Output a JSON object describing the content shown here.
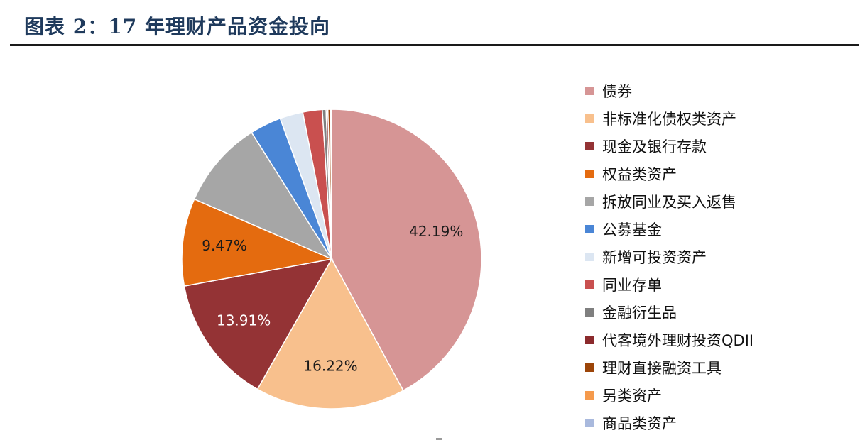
{
  "header": {
    "title": "图表 2：17 年理财产品资金投向"
  },
  "chart_data": {
    "type": "pie",
    "title": "",
    "start_angle_deg": 0,
    "direction": "clockwise",
    "slices": [
      {
        "label": "债券",
        "value": 42.19,
        "color": "#d69595",
        "data_label": "42.19%",
        "label_color": "#1a1a1a"
      },
      {
        "label": "非标准化债权类资产",
        "value": 16.22,
        "color": "#f8c08d",
        "data_label": "16.22%",
        "label_color": "#1a1a1a"
      },
      {
        "label": "现金及银行存款",
        "value": 13.91,
        "color": "#943335",
        "data_label": "13.91%",
        "label_color": "#ffffff"
      },
      {
        "label": "权益类资产",
        "value": 9.47,
        "color": "#e46b0f",
        "data_label": "9.47%",
        "label_color": "#1a1a1a"
      },
      {
        "label": "拆放同业及买入返售",
        "value": 9.5,
        "color": "#a6a6a6",
        "data_label": null
      },
      {
        "label": "公募基金",
        "value": 3.4,
        "color": "#4a86d6",
        "data_label": null
      },
      {
        "label": "新增可投资资产",
        "value": 2.5,
        "color": "#dce6f2",
        "data_label": null
      },
      {
        "label": "同业存单",
        "value": 2.1,
        "color": "#c9504f",
        "data_label": null
      },
      {
        "label": "金融衍生品",
        "value": 0.4,
        "color": "#7f7f7f",
        "data_label": null
      },
      {
        "label": "代客境外理财投资QDII",
        "value": 0.2,
        "color": "#8b2a2c",
        "data_label": null
      },
      {
        "label": "理财直接融资工具",
        "value": 0.3,
        "color": "#9c4509",
        "data_label": null
      },
      {
        "label": "另类资产",
        "value": 0.05,
        "color": "#f59a4c",
        "data_label": null
      },
      {
        "label": "商品类资产",
        "value": 0.05,
        "color": "#a9b9dd",
        "data_label": null
      }
    ],
    "legend_position": "right"
  }
}
